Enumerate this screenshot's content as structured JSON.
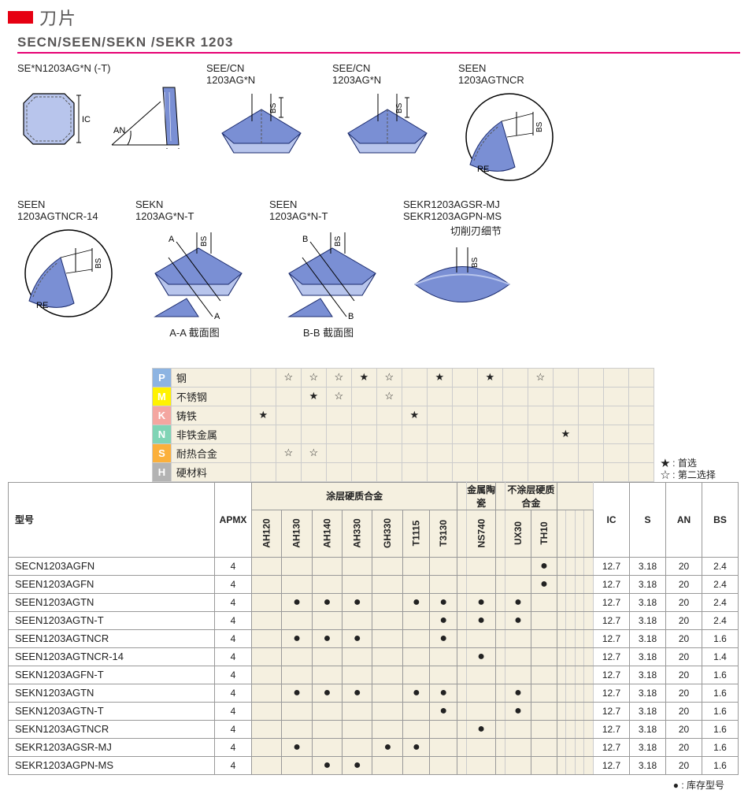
{
  "header": {
    "title_cn": "刀片"
  },
  "subtitle": "SECN/SEEN/SEKN /SEKR 1203",
  "diagrams": {
    "row1": [
      {
        "label": "SE*N1203AG*N (-T)",
        "dims": [
          "IC",
          "AN",
          "S"
        ]
      },
      {
        "label": "SEE/CN\n1203AG*N",
        "dims": [
          "BS"
        ]
      },
      {
        "label": "SEE/CN\n1203AG*N",
        "dims": [
          "BS"
        ]
      },
      {
        "label": "SEEN\n1203AGTNCR",
        "dims": [
          "BS",
          "RE"
        ]
      }
    ],
    "row2": [
      {
        "label": "SEEN\n1203AGTNCR-14",
        "dims": [
          "BS",
          "RE"
        ]
      },
      {
        "label": "SEKN\n1203AG*N-T",
        "dims": [
          "A",
          "BS"
        ],
        "caption": "A-A 截面图"
      },
      {
        "label": "SEEN\n1203AG*N-T",
        "dims": [
          "B",
          "BS"
        ],
        "caption": "B-B 截面图"
      },
      {
        "label": "SEKR1203AGSR-MJ\nSEKR1203AGPN-MS",
        "extra": "切削刃细节",
        "dims": [
          "BS"
        ]
      }
    ]
  },
  "material_rows": [
    {
      "code": "P",
      "color": "#8db4e2",
      "name": "钢",
      "stars": [
        "",
        "☆",
        "☆",
        "☆",
        "★",
        "☆",
        "",
        "★",
        "",
        "★",
        "",
        "☆",
        "",
        "",
        "",
        ""
      ]
    },
    {
      "code": "M",
      "color": "#fff200",
      "name": "不锈钢",
      "stars": [
        "",
        "",
        "★",
        "☆",
        "",
        "☆",
        "",
        "",
        "",
        "",
        "",
        "",
        "",
        "",
        "",
        ""
      ]
    },
    {
      "code": "K",
      "color": "#f4a6a0",
      "name": "铸铁",
      "stars": [
        "★",
        "",
        "",
        "",
        "",
        "",
        "★",
        "",
        "",
        "",
        "",
        "",
        "",
        "",
        "",
        ""
      ]
    },
    {
      "code": "N",
      "color": "#7fd4b5",
      "name": "非铁金属",
      "stars": [
        "",
        "",
        "",
        "",
        "",
        "",
        "",
        "",
        "",
        "",
        "",
        "",
        "★",
        "",
        "",
        ""
      ]
    },
    {
      "code": "S",
      "color": "#fbb03b",
      "name": "耐热合金",
      "stars": [
        "",
        "☆",
        "☆",
        "",
        "",
        "",
        "",
        "",
        "",
        "",
        "",
        "",
        "",
        "",
        "",
        ""
      ]
    },
    {
      "code": "H",
      "color": "#b3b3b3",
      "name": "硬材料",
      "stars": [
        "",
        "",
        "",
        "",
        "",
        "",
        "",
        "",
        "",
        "",
        "",
        "",
        "",
        "",
        "",
        ""
      ]
    }
  ],
  "legend": {
    "star_solid": "★ : 首选",
    "star_open": "☆ : 第二选择",
    "dot": "● : 库存型号"
  },
  "group_headers": {
    "coated": "涂层硬质合金",
    "cermet": "金属陶瓷",
    "uncoated": "不涂层硬质合金"
  },
  "col_headers": {
    "model": "型号",
    "apmx": "APMX",
    "grades": [
      "AH120",
      "AH130",
      "AH140",
      "AH330",
      "GH330",
      "T1115",
      "T3130",
      "",
      "NS740",
      "",
      "UX30",
      "TH10",
      "",
      "",
      "",
      ""
    ],
    "dims": [
      "IC",
      "S",
      "AN",
      "BS"
    ]
  },
  "rows": [
    {
      "model": "SECN1203AGFN",
      "apmx": 4,
      "g": [
        "",
        "",
        "",
        "",
        "",
        "",
        "",
        "",
        "",
        "",
        "",
        "●",
        "",
        "",
        "",
        ""
      ],
      "ic": "12.7",
      "s": "3.18",
      "an": "20",
      "bs": "2.4"
    },
    {
      "model": "SEEN1203AGFN",
      "apmx": 4,
      "g": [
        "",
        "",
        "",
        "",
        "",
        "",
        "",
        "",
        "",
        "",
        "",
        "●",
        "",
        "",
        "",
        ""
      ],
      "ic": "12.7",
      "s": "3.18",
      "an": "20",
      "bs": "2.4"
    },
    {
      "model": "SEEN1203AGTN",
      "apmx": 4,
      "g": [
        "",
        "●",
        "●",
        "●",
        "",
        "●",
        "●",
        "",
        "●",
        "",
        "●",
        "",
        "",
        "",
        "",
        ""
      ],
      "ic": "12.7",
      "s": "3.18",
      "an": "20",
      "bs": "2.4"
    },
    {
      "model": "SEEN1203AGTN-T",
      "apmx": 4,
      "g": [
        "",
        "",
        "",
        "",
        "",
        "",
        "●",
        "",
        "●",
        "",
        "●",
        "",
        "",
        "",
        "",
        ""
      ],
      "ic": "12.7",
      "s": "3.18",
      "an": "20",
      "bs": "2.4"
    },
    {
      "model": "SEEN1203AGTNCR",
      "apmx": 4,
      "g": [
        "",
        "●",
        "●",
        "●",
        "",
        "",
        "●",
        "",
        "",
        "",
        "",
        "",
        "",
        "",
        "",
        ""
      ],
      "ic": "12.7",
      "s": "3.18",
      "an": "20",
      "bs": "1.6"
    },
    {
      "model": "SEEN1203AGTNCR-14",
      "apmx": 4,
      "g": [
        "",
        "",
        "",
        "",
        "",
        "",
        "",
        "",
        "●",
        "",
        "",
        "",
        "",
        "",
        "",
        ""
      ],
      "ic": "12.7",
      "s": "3.18",
      "an": "20",
      "bs": "1.4"
    },
    {
      "model": "SEKN1203AGFN-T",
      "apmx": 4,
      "g": [
        "",
        "",
        "",
        "",
        "",
        "",
        "",
        "",
        "",
        "",
        "",
        "",
        "",
        "",
        "",
        ""
      ],
      "ic": "12.7",
      "s": "3.18",
      "an": "20",
      "bs": "1.6"
    },
    {
      "model": "SEKN1203AGTN",
      "apmx": 4,
      "g": [
        "",
        "●",
        "●",
        "●",
        "",
        "●",
        "●",
        "",
        "",
        "",
        "●",
        "",
        "",
        "",
        "",
        ""
      ],
      "ic": "12.7",
      "s": "3.18",
      "an": "20",
      "bs": "1.6"
    },
    {
      "model": "SEKN1203AGTN-T",
      "apmx": 4,
      "g": [
        "",
        "",
        "",
        "",
        "",
        "",
        "●",
        "",
        "",
        "",
        "●",
        "",
        "",
        "",
        "",
        ""
      ],
      "ic": "12.7",
      "s": "3.18",
      "an": "20",
      "bs": "1.6"
    },
    {
      "model": "SEKN1203AGTNCR",
      "apmx": 4,
      "g": [
        "",
        "",
        "",
        "",
        "",
        "",
        "",
        "",
        "●",
        "",
        "",
        "",
        "",
        "",
        "",
        ""
      ],
      "ic": "12.7",
      "s": "3.18",
      "an": "20",
      "bs": "1.6"
    },
    {
      "model": "SEKR1203AGSR-MJ",
      "apmx": 4,
      "g": [
        "",
        "●",
        "",
        "",
        "●",
        "●",
        "",
        "",
        "",
        "",
        "",
        "",
        "",
        "",
        "",
        ""
      ],
      "ic": "12.7",
      "s": "3.18",
      "an": "20",
      "bs": "1.6"
    },
    {
      "model": "SEKR1203AGPN-MS",
      "apmx": 4,
      "g": [
        "",
        "",
        "●",
        "●",
        "",
        "",
        "",
        "",
        "",
        "",
        "",
        "",
        "",
        "",
        "",
        ""
      ],
      "ic": "12.7",
      "s": "3.18",
      "an": "20",
      "bs": "1.6"
    }
  ],
  "svg_colors": {
    "insert_fill": "#7a8fd4",
    "insert_stroke": "#1a2a6c",
    "insert_light": "#b8c5ec",
    "dash": "#555"
  }
}
